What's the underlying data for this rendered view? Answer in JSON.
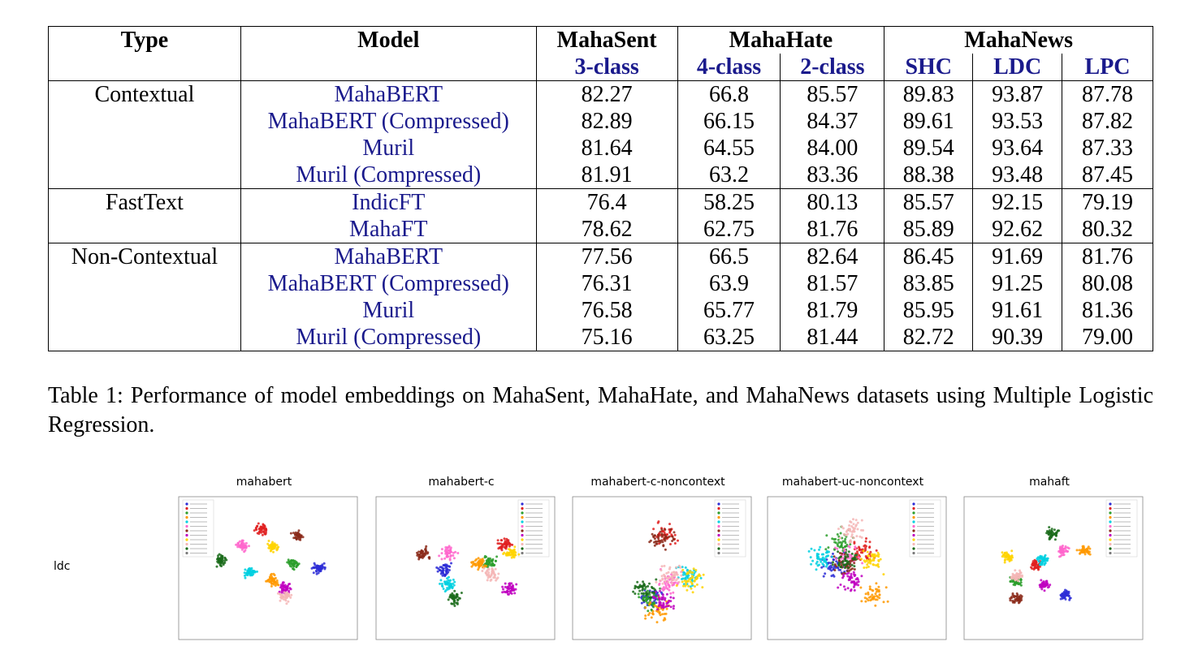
{
  "table": {
    "headers": {
      "type": "Type",
      "model": "Model",
      "groups": [
        "MahaSent",
        "MahaHate",
        "MahaNews"
      ],
      "subcols": [
        "3-class",
        "4-class",
        "2-class",
        "SHC",
        "LDC",
        "LPC"
      ]
    },
    "sections": [
      {
        "type": "Contextual",
        "rows": [
          {
            "model": "MahaBERT",
            "values": [
              "82.27",
              "66.8",
              "85.57",
              "89.83",
              "93.87",
              "87.78"
            ]
          },
          {
            "model": "MahaBERT (Compressed)",
            "values": [
              "82.89",
              "66.15",
              "84.37",
              "89.61",
              "93.53",
              "87.82"
            ]
          },
          {
            "model": "Muril",
            "values": [
              "81.64",
              "64.55",
              "84.00",
              "89.54",
              "93.64",
              "87.33"
            ]
          },
          {
            "model": "Muril (Compressed)",
            "values": [
              "81.91",
              "63.2",
              "83.36",
              "88.38",
              "93.48",
              "87.45"
            ]
          }
        ]
      },
      {
        "type": "FastText",
        "rows": [
          {
            "model": "IndicFT",
            "values": [
              "76.4",
              "58.25",
              "80.13",
              "85.57",
              "92.15",
              "79.19"
            ]
          },
          {
            "model": "MahaFT",
            "values": [
              "78.62",
              "62.75",
              "81.76",
              "85.89",
              "92.62",
              "80.32"
            ]
          }
        ]
      },
      {
        "type": "Non-Contextual",
        "rows": [
          {
            "model": "MahaBERT",
            "values": [
              "77.56",
              "66.5",
              "82.64",
              "86.45",
              "91.69",
              "81.76"
            ]
          },
          {
            "model": "MahaBERT (Compressed)",
            "values": [
              "76.31",
              "63.9",
              "81.57",
              "83.85",
              "91.25",
              "80.08"
            ]
          },
          {
            "model": "Muril",
            "values": [
              "76.58",
              "65.77",
              "81.79",
              "85.95",
              "91.61",
              "81.36"
            ]
          },
          {
            "model": "Muril (Compressed)",
            "values": [
              "75.16",
              "63.25",
              "81.44",
              "82.72",
              "90.39",
              "79.00"
            ]
          }
        ]
      }
    ]
  },
  "caption": "Table 1: Performance of model embeddings on MahaSent, MahaHate, and MahaNews datasets using Multiple Logistic Regression.",
  "figure": {
    "row_label": "ldc",
    "panels": [
      {
        "title": "mahabert"
      },
      {
        "title": "mahabert-c"
      },
      {
        "title": "mahabert-c-noncontext"
      },
      {
        "title": "mahabert-uc-noncontext"
      },
      {
        "title": "mahaft"
      }
    ],
    "cluster_colors": [
      "#2b2bd6",
      "#e02020",
      "#2a9d2a",
      "#ff9900",
      "#00d0e0",
      "#ff66cc",
      "#8b2a1a",
      "#c000c0",
      "#ffd400",
      "#f4b6b6",
      "#1a6b1a",
      "#7a7a7a"
    ]
  }
}
